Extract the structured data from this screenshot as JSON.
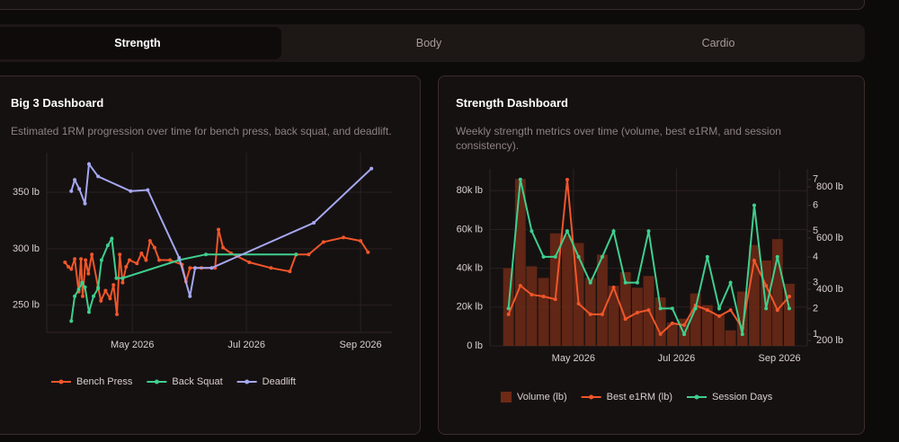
{
  "tabs": [
    "Strength",
    "Body",
    "Cardio"
  ],
  "chart_data": [
    {
      "type": "line",
      "title": "Big 3 Dashboard",
      "subtitle": "Estimated 1RM progression over time for bench press, back squat, and deadlift.",
      "xlim": [
        3.5,
        9.55
      ],
      "xticks": [
        {
          "value": 5,
          "label": "May 2026"
        },
        {
          "value": 7,
          "label": "Jul 2026"
        },
        {
          "value": 9,
          "label": "Sep 2026"
        }
      ],
      "ylim": [
        226,
        385
      ],
      "yticks": [
        {
          "value": 250,
          "label": "250 lb"
        },
        {
          "value": 300,
          "label": "300 lb"
        },
        {
          "value": 350,
          "label": "350 lb"
        }
      ],
      "grid": true,
      "legend": "bottom",
      "series": [
        {
          "name": "Bench Press",
          "color": "#f0562a",
          "x": [
            3.82,
            3.88,
            3.93,
            3.99,
            4.06,
            4.1,
            4.13,
            4.18,
            4.23,
            4.29,
            4.4,
            4.45,
            4.53,
            4.61,
            4.67,
            4.73,
            4.78,
            4.83,
            4.89,
            4.95,
            5.08,
            5.16,
            5.24,
            5.31,
            5.39,
            5.47,
            5.66,
            5.87,
            5.94,
            6.01,
            6.21,
            6.45,
            6.51,
            6.59,
            6.73,
            7.05,
            7.43,
            7.76,
            7.87,
            8.09,
            8.35,
            8.7,
            9.0,
            9.13
          ],
          "values": [
            288,
            284,
            282,
            291,
            262,
            291,
            258,
            290,
            278,
            295,
            266,
            254,
            263,
            256,
            268,
            242,
            295,
            270,
            284,
            290,
            287,
            296,
            290,
            307,
            301,
            290,
            290,
            286,
            271,
            283,
            283,
            283,
            317,
            301,
            296,
            288,
            283,
            280,
            295,
            295,
            306,
            310,
            307,
            297
          ]
        },
        {
          "name": "Back Squat",
          "color": "#3ecf8e",
          "x": [
            3.93,
            3.99,
            4.06,
            4.12,
            4.17,
            4.24,
            4.32,
            4.4,
            4.46,
            4.57,
            4.64,
            4.72,
            4.83,
            5.82,
            6.29,
            7.87
          ],
          "values": [
            236,
            258,
            264,
            270,
            266,
            244,
            258,
            265,
            290,
            303,
            309,
            274,
            274,
            290,
            295,
            295
          ]
        },
        {
          "name": "Deadlift",
          "color": "#a5a8f0",
          "x": [
            3.93,
            3.99,
            4.07,
            4.17,
            4.24,
            4.4,
            4.97,
            5.27,
            5.82,
            6.01,
            6.1,
            6.39,
            8.18,
            9.19
          ],
          "values": [
            351,
            361,
            353,
            340,
            375,
            364,
            351,
            352,
            292,
            258,
            283,
            283,
            323,
            371
          ]
        }
      ]
    },
    {
      "type": "bar",
      "title": "Strength Dashboard",
      "subtitle": "Weekly strength metrics over time (volume, best e1RM, and session consistency).",
      "x": [
        3.74,
        3.97,
        4.19,
        4.42,
        4.65,
        4.88,
        5.1,
        5.33,
        5.56,
        5.78,
        6.01,
        6.24,
        6.46,
        6.69,
        6.92,
        7.15,
        7.37,
        7.6,
        7.83,
        8.05,
        8.28,
        8.51,
        8.74,
        8.96,
        9.19
      ],
      "xlim": [
        3.38,
        9.54
      ],
      "xticks": [
        {
          "value": 5,
          "label": "May 2026"
        },
        {
          "value": 7,
          "label": "Jul 2026"
        },
        {
          "value": 9,
          "label": "Sep 2026"
        }
      ],
      "ylim": [
        0,
        91200
      ],
      "yticks": [
        {
          "value": 0,
          "label": "0 lb"
        },
        {
          "value": 20000,
          "label": "20k lb"
        },
        {
          "value": 40000,
          "label": "40k lb"
        },
        {
          "value": 60000,
          "label": "60k lb"
        },
        {
          "value": 80000,
          "label": "80k lb"
        }
      ],
      "y2lim": [
        179,
        870
      ],
      "y2ticks": [
        {
          "value": 200,
          "label": "200 lb"
        },
        {
          "value": 400,
          "label": "400 lb"
        },
        {
          "value": 600,
          "label": "600 lb"
        },
        {
          "value": 800,
          "label": "800 lb"
        }
      ],
      "y3lim": [
        0.55,
        7.41
      ],
      "y3ticks": [
        1,
        2,
        3,
        4,
        5,
        6,
        7
      ],
      "grid": true,
      "legend": "bottom",
      "series": [
        {
          "name": "Volume (lb)",
          "color": "#6e2a16",
          "values": [
            40000,
            86000,
            41000,
            35000,
            58000,
            57000,
            53000,
            35000,
            47000,
            31000,
            38000,
            30000,
            36000,
            25000,
            12000,
            14000,
            27000,
            21000,
            16000,
            8000,
            28000,
            52000,
            44000,
            55000,
            32000
          ]
        },
        {
          "name": "Best e1RM (lb)",
          "type": "line",
          "axis": "y2",
          "color": "#f0562a",
          "values": [
            302,
            414,
            379,
            372,
            361,
            828,
            344,
            302,
            302,
            407,
            284,
            309,
            319,
            225,
            267,
            260,
            337,
            319,
            295,
            319,
            249,
            512,
            414,
            319,
            372
          ]
        },
        {
          "name": "Session Days",
          "type": "line",
          "axis": "y3",
          "color": "#3ecf8e",
          "values": [
            2,
            7,
            5,
            4,
            4,
            5,
            4,
            3,
            4,
            5,
            3,
            3,
            5,
            2,
            2,
            1,
            2,
            4,
            2,
            3,
            1,
            6,
            2,
            4,
            2
          ]
        }
      ]
    }
  ]
}
